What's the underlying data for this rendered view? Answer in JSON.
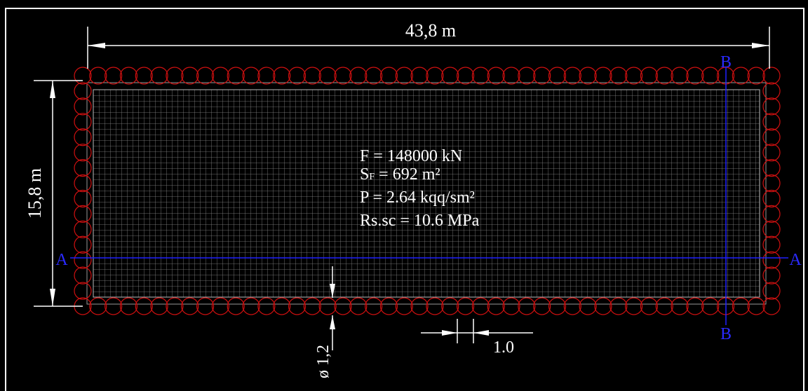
{
  "dimensions": {
    "length": "43,8 m",
    "width": "15,8 m",
    "pile_diameter": "ø 1,2",
    "pile_spacing": "1.0"
  },
  "notes": {
    "force": "F = 148000 kN",
    "area_symbol": "S",
    "area_subscript": "F",
    "area_rest": " = 692 m²",
    "pressure": "P = 2.64 kqq/sm²",
    "strength": "Rs.sc = 10.6 MPa"
  },
  "sections": {
    "a_left": "A",
    "a_right": "A",
    "b_top": "B",
    "b_bottom": "B"
  }
}
